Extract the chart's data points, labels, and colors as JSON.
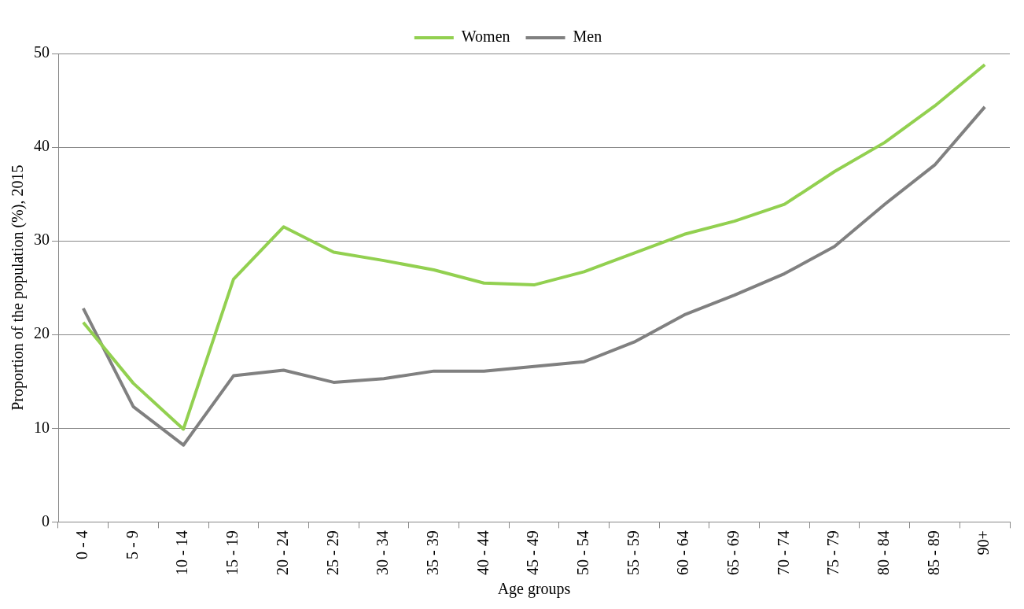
{
  "chart_data": {
    "type": "line",
    "xlabel": "Age groups",
    "ylabel": "Proportion of the population (%), 2015",
    "categories": [
      "0 - 4",
      "5 - 9",
      "10 - 14",
      "15 - 19",
      "20 - 24",
      "25 - 29",
      "30 - 34",
      "35 - 39",
      "40 - 44",
      "45 - 49",
      "50 - 54",
      "55 - 59",
      "60 - 64",
      "65 - 69",
      "70 - 74",
      "75 - 79",
      "80 - 84",
      "85 - 89",
      "90+"
    ],
    "series": [
      {
        "name": "Women",
        "color": "#92d050",
        "values": [
          21.3,
          14.8,
          9.9,
          25.9,
          31.5,
          28.8,
          27.9,
          26.9,
          25.5,
          25.3,
          26.7,
          28.7,
          30.7,
          32.1,
          33.9,
          37.4,
          40.5,
          44.4,
          48.8
        ]
      },
      {
        "name": "Men",
        "color": "#808080",
        "values": [
          22.8,
          12.3,
          8.2,
          15.6,
          16.2,
          14.9,
          15.3,
          16.1,
          16.1,
          16.6,
          17.1,
          19.2,
          22.1,
          24.2,
          26.5,
          29.4,
          33.9,
          38.1,
          44.3
        ]
      }
    ],
    "ylim": [
      0,
      50
    ],
    "yticks": [
      0,
      10,
      20,
      30,
      40,
      50
    ],
    "grid": "y",
    "legend": "top",
    "marker": "none",
    "line_style": "solid"
  }
}
